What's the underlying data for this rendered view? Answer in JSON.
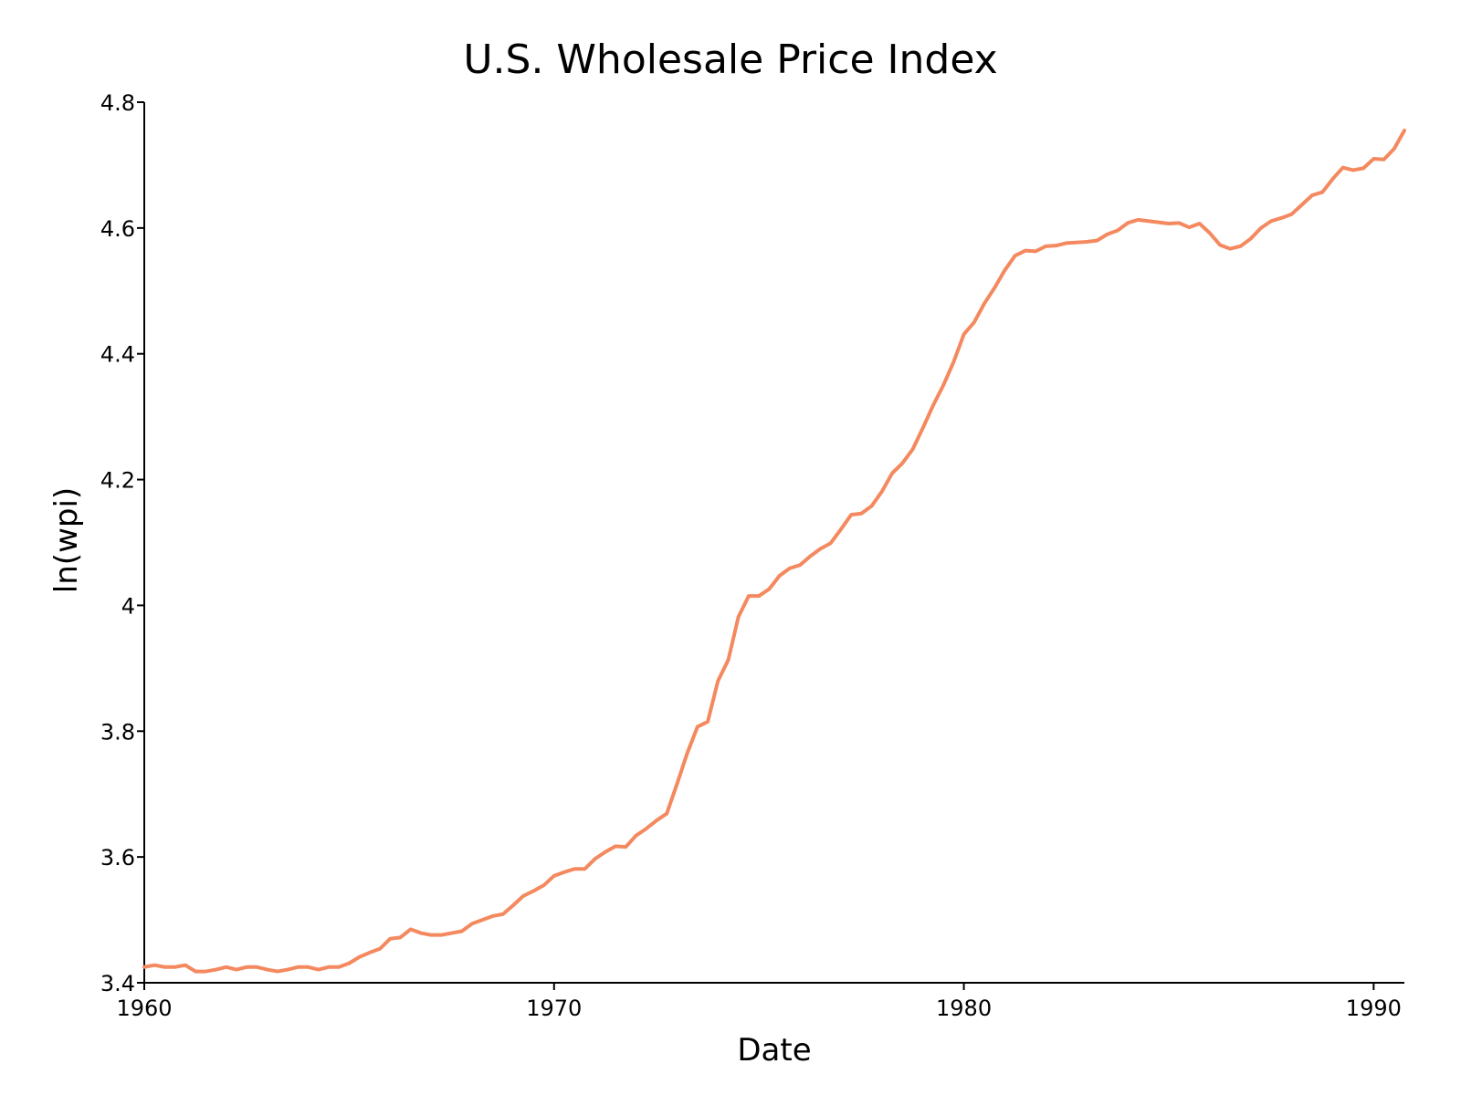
{
  "chart_data": {
    "type": "line",
    "title": "U.S. Wholesale Price Index",
    "xlabel": "Date",
    "ylabel": "ln(wpi)",
    "xlim": [
      1960.0,
      1990.75
    ],
    "ylim": [
      3.4,
      4.8
    ],
    "x_ticks": [
      {
        "value": 1960,
        "label": "1960"
      },
      {
        "value": 1970,
        "label": "1970"
      },
      {
        "value": 1980,
        "label": "1980"
      },
      {
        "value": 1990,
        "label": "1990"
      }
    ],
    "y_ticks": [
      {
        "value": 3.4,
        "label": "3.4"
      },
      {
        "value": 3.6,
        "label": "3.6"
      },
      {
        "value": 3.8,
        "label": "3.8"
      },
      {
        "value": 4.0,
        "label": "4"
      },
      {
        "value": 4.2,
        "label": "4.2"
      },
      {
        "value": 4.4,
        "label": "4.4"
      },
      {
        "value": 4.6,
        "label": "4.6"
      },
      {
        "value": 4.8,
        "label": "4.8"
      }
    ],
    "grid": false,
    "legend": "none",
    "color": "#f4895f",
    "series": [
      {
        "x": [
          1960.0,
          1960.25,
          1960.5,
          1960.75,
          1961.0,
          1961.25,
          1961.5,
          1961.75,
          1962.0,
          1962.25,
          1962.5,
          1962.75,
          1963.0,
          1963.25,
          1963.5,
          1963.75,
          1964.0,
          1964.25,
          1964.5,
          1964.75,
          1965.0,
          1965.25,
          1965.5,
          1965.75,
          1966.0,
          1966.25,
          1966.5,
          1966.75,
          1967.0,
          1967.25,
          1967.5,
          1967.75,
          1968.0,
          1968.25,
          1968.5,
          1968.75,
          1969.0,
          1969.25,
          1969.5,
          1969.75,
          1970.0,
          1970.25,
          1970.5,
          1970.75,
          1971.0,
          1971.25,
          1971.5,
          1971.75,
          1972.0,
          1972.25,
          1972.5,
          1972.75,
          1973.0,
          1973.25,
          1973.5,
          1973.75,
          1974.0,
          1974.25,
          1974.5,
          1974.75,
          1975.0,
          1975.25,
          1975.5,
          1975.75,
          1976.0,
          1976.25,
          1976.5,
          1976.75,
          1977.0,
          1977.25,
          1977.5,
          1977.75,
          1978.0,
          1978.25,
          1978.5,
          1978.75,
          1979.0,
          1979.25,
          1979.5,
          1979.75,
          1980.0,
          1980.25,
          1980.5,
          1980.75,
          1981.0,
          1981.25,
          1981.5,
          1981.75,
          1982.0,
          1982.25,
          1982.5,
          1982.75,
          1983.0,
          1983.25,
          1983.5,
          1983.75,
          1984.0,
          1984.25,
          1984.5,
          1984.75,
          1985.0,
          1985.25,
          1985.5,
          1985.75,
          1986.0,
          1986.25,
          1986.5,
          1986.75,
          1987.0,
          1987.25,
          1987.5,
          1987.75,
          1988.0,
          1988.25,
          1988.5,
          1988.75,
          1989.0,
          1989.25,
          1989.5,
          1989.75,
          1990.0,
          1990.25,
          1990.5,
          1990.75
        ],
        "y": [
          3.425,
          3.428,
          3.425,
          3.425,
          3.428,
          3.418,
          3.418,
          3.421,
          3.425,
          3.421,
          3.425,
          3.425,
          3.421,
          3.418,
          3.421,
          3.425,
          3.425,
          3.421,
          3.425,
          3.425,
          3.431,
          3.441,
          3.448,
          3.454,
          3.47,
          3.472,
          3.485,
          3.479,
          3.476,
          3.476,
          3.479,
          3.482,
          3.494,
          3.5,
          3.506,
          3.509,
          3.523,
          3.538,
          3.546,
          3.555,
          3.57,
          3.576,
          3.581,
          3.581,
          3.597,
          3.608,
          3.617,
          3.616,
          3.634,
          3.645,
          3.658,
          3.669,
          3.716,
          3.765,
          3.807,
          3.815,
          3.88,
          3.913,
          3.982,
          4.015,
          4.015,
          4.026,
          4.047,
          4.059,
          4.064,
          4.078,
          4.09,
          4.099,
          4.121,
          4.144,
          4.146,
          4.158,
          4.181,
          4.21,
          4.226,
          4.248,
          4.282,
          4.318,
          4.35,
          4.387,
          4.431,
          4.45,
          4.48,
          4.505,
          4.533,
          4.556,
          4.564,
          4.563,
          4.571,
          4.572,
          4.576,
          4.577,
          4.578,
          4.58,
          4.59,
          4.596,
          4.608,
          4.613,
          4.611,
          4.609,
          4.607,
          4.608,
          4.601,
          4.607,
          4.592,
          4.573,
          4.567,
          4.571,
          4.583,
          4.6,
          4.611,
          4.616,
          4.622,
          4.637,
          4.652,
          4.657,
          4.678,
          4.696,
          4.692,
          4.695,
          4.71,
          4.709,
          4.726,
          4.755
        ]
      }
    ]
  }
}
